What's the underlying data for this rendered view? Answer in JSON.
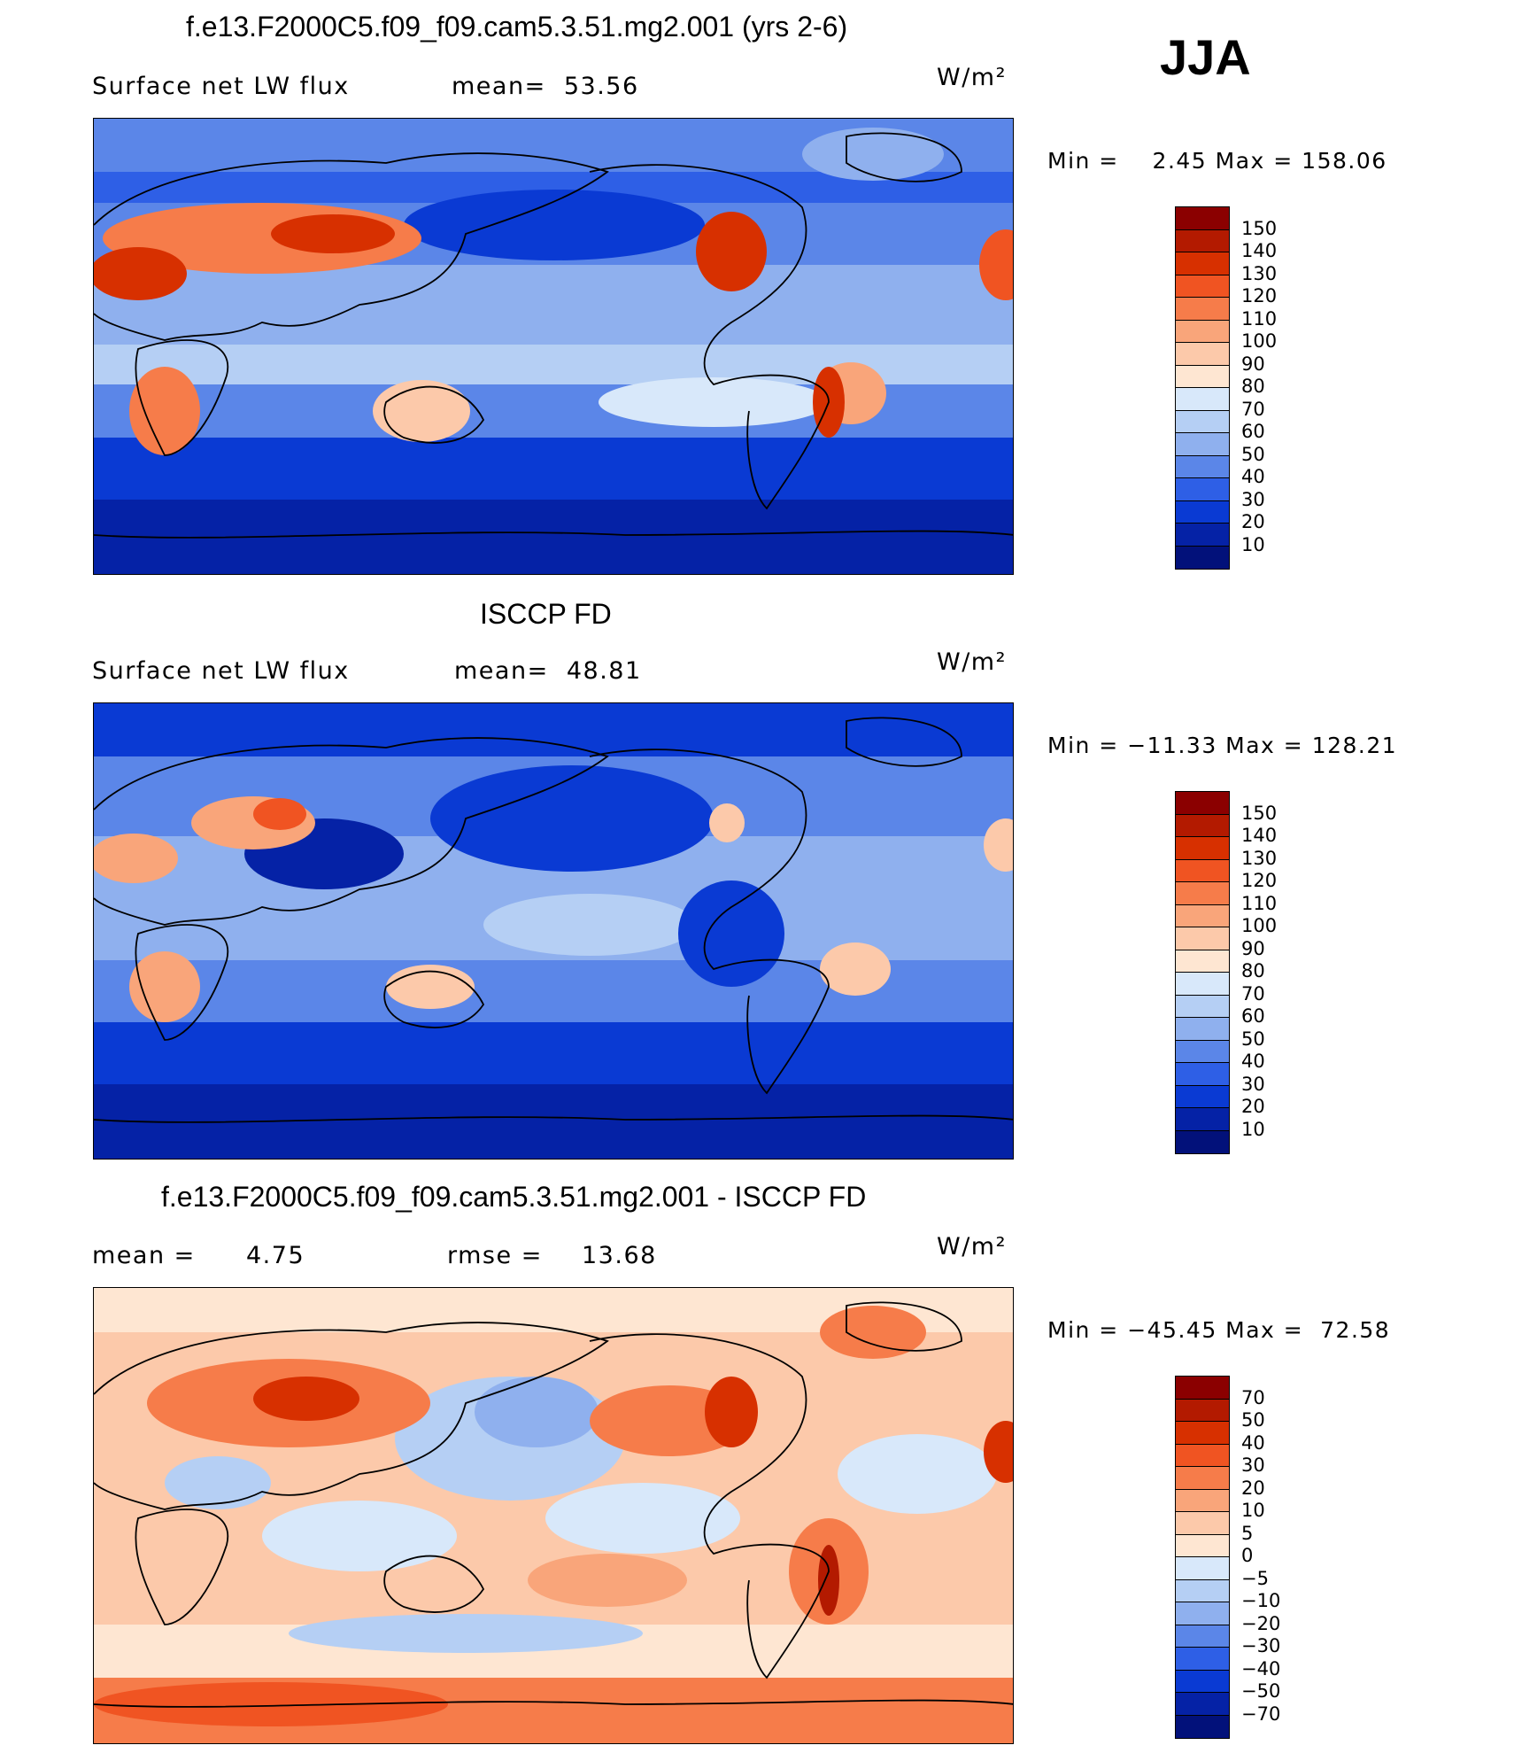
{
  "season": "JJA",
  "units": "W/m²",
  "panels": [
    {
      "title": "f.e13.F2000C5.f09_f09.cam5.3.51.mg2.001 (yrs 2-6)",
      "left_label": "Surface net LW flux",
      "stat1": "mean=  53.56",
      "stat2": "",
      "minmax": "Min =    2.45 Max = 158.06",
      "legend_labels": [
        "150",
        "140",
        "130",
        "120",
        "110",
        "100",
        "90",
        "80",
        "70",
        "60",
        "50",
        "40",
        "30",
        "20",
        "10"
      ],
      "legend_colors": [
        "#8b0000",
        "#b31a00",
        "#d73000",
        "#f05422",
        "#f67c4a",
        "#f9a57a",
        "#fcc9aa",
        "#fee6d2",
        "#d8e8fa",
        "#b5cff4",
        "#8fb0ee",
        "#5b86e8",
        "#2e5fe6",
        "#0a3ad3",
        "#0522a6",
        "#02117a"
      ]
    },
    {
      "title": "ISCCP FD",
      "left_label": "Surface net LW flux",
      "stat1": "mean=  48.81",
      "stat2": "",
      "minmax": "Min = −11.33 Max = 128.21",
      "legend_labels": [
        "150",
        "140",
        "130",
        "120",
        "110",
        "100",
        "90",
        "80",
        "70",
        "60",
        "50",
        "40",
        "30",
        "20",
        "10"
      ],
      "legend_colors": [
        "#8b0000",
        "#b31a00",
        "#d73000",
        "#f05422",
        "#f67c4a",
        "#f9a57a",
        "#fcc9aa",
        "#fee6d2",
        "#d8e8fa",
        "#b5cff4",
        "#8fb0ee",
        "#5b86e8",
        "#2e5fe6",
        "#0a3ad3",
        "#0522a6",
        "#02117a"
      ]
    },
    {
      "title": "f.e13.F2000C5.f09_f09.cam5.3.51.mg2.001 - ISCCP FD",
      "left_label": "mean =",
      "left_value": "4.75",
      "stat1": "rmse =",
      "stat2": "13.68",
      "minmax": "Min = −45.45 Max =  72.58",
      "legend_labels": [
        "70",
        "50",
        "40",
        "30",
        "20",
        "10",
        "5",
        "0",
        "−5",
        "−10",
        "−20",
        "−30",
        "−40",
        "−50",
        "−70"
      ],
      "legend_colors": [
        "#8b0000",
        "#b31a00",
        "#d73000",
        "#f05422",
        "#f67c4a",
        "#f9a57a",
        "#fcc9aa",
        "#fee6d2",
        "#d8e8fa",
        "#b5cff4",
        "#8fb0ee",
        "#5b86e8",
        "#2e5fe6",
        "#0a3ad3",
        "#0522a6",
        "#02117a"
      ]
    }
  ]
}
